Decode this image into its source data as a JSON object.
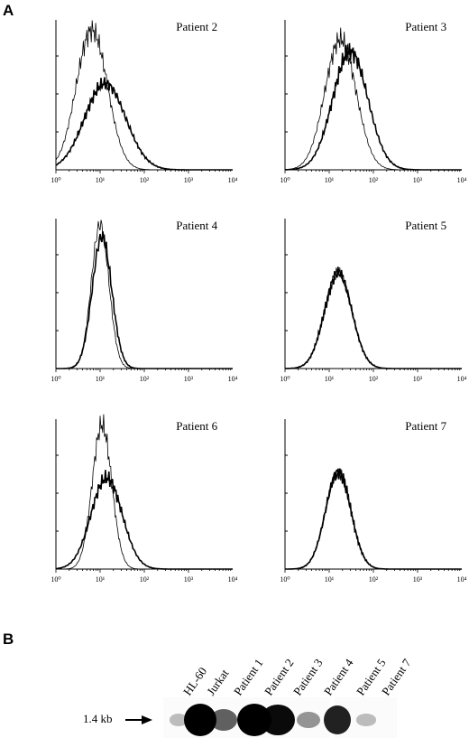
{
  "panel_a_label": "A",
  "panel_b_label": "B",
  "chart_data": [
    {
      "type": "area",
      "title": "Patient 2",
      "xscale": "log",
      "xlim": [
        1,
        10000
      ],
      "x_tick_labels": [
        "10⁰",
        "10¹",
        "10²",
        "10³",
        "10⁴"
      ],
      "series": [
        {
          "style": "thin",
          "peak_x": 6.5,
          "width": 0.16,
          "peak_y": 0.92
        },
        {
          "style": "thick",
          "peak_x": 13,
          "width": 0.21,
          "peak_y": 0.57
        }
      ]
    },
    {
      "type": "area",
      "title": "Patient 3",
      "xscale": "log",
      "xlim": [
        1,
        10000
      ],
      "x_tick_labels": [
        "10⁰",
        "10¹",
        "10²",
        "10³",
        "10⁴"
      ],
      "series": [
        {
          "style": "thin",
          "peak_x": 18,
          "width": 0.16,
          "peak_y": 0.86
        },
        {
          "style": "thick",
          "peak_x": 30,
          "width": 0.18,
          "peak_y": 0.78
        }
      ]
    },
    {
      "type": "area",
      "title": "Patient 4",
      "xscale": "log",
      "xlim": [
        1,
        10000
      ],
      "x_tick_labels": [
        "10⁰",
        "10¹",
        "10²",
        "10³",
        "10⁴"
      ],
      "series": [
        {
          "style": "thin",
          "peak_x": 10,
          "width": 0.09,
          "peak_y": 0.95
        },
        {
          "style": "thick",
          "peak_x": 11,
          "width": 0.1,
          "peak_y": 0.87
        }
      ]
    },
    {
      "type": "area",
      "title": "Patient 5",
      "xscale": "log",
      "xlim": [
        1,
        10000
      ],
      "x_tick_labels": [
        "10⁰",
        "10¹",
        "10²",
        "10³",
        "10⁴"
      ],
      "series": [
        {
          "style": "thin",
          "peak_x": 16,
          "width": 0.14,
          "peak_y": 0.63
        },
        {
          "style": "thick",
          "peak_x": 16,
          "width": 0.14,
          "peak_y": 0.63
        }
      ]
    },
    {
      "type": "area",
      "title": "Patient 6",
      "xscale": "log",
      "xlim": [
        1,
        10000
      ],
      "x_tick_labels": [
        "10⁰",
        "10¹",
        "10²",
        "10³",
        "10⁴"
      ],
      "series": [
        {
          "style": "thin",
          "peak_x": 11,
          "width": 0.1,
          "peak_y": 0.95
        },
        {
          "style": "thick",
          "peak_x": 14,
          "width": 0.16,
          "peak_y": 0.6
        }
      ]
    },
    {
      "type": "area",
      "title": "Patient 7",
      "xscale": "log",
      "xlim": [
        1,
        10000
      ],
      "x_tick_labels": [
        "10⁰",
        "10¹",
        "10²",
        "10³",
        "10⁴"
      ],
      "series": [
        {
          "style": "thin",
          "peak_x": 16,
          "width": 0.13,
          "peak_y": 0.64
        },
        {
          "style": "thick",
          "peak_x": 16,
          "width": 0.13,
          "peak_y": 0.64
        }
      ]
    }
  ],
  "blot": {
    "lanes": [
      "HL-60",
      "Jurkat",
      "Patient 1",
      "Patient 2",
      "Patient 3",
      "Patient 4",
      "Patient 5",
      "Patient 7"
    ],
    "band_intensity": [
      0.12,
      1.0,
      0.55,
      1.0,
      0.95,
      0.3,
      0.85,
      0.12
    ],
    "size_label": "1.4 kb"
  }
}
